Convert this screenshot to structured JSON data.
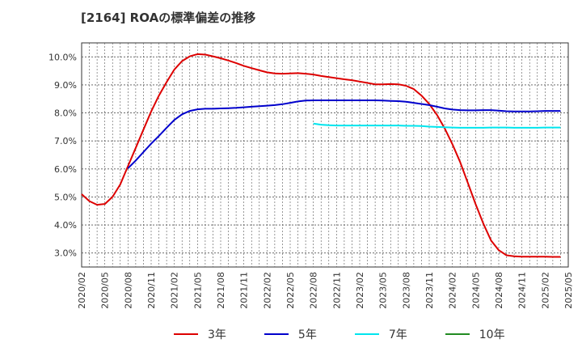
{
  "chart_data": {
    "type": "line",
    "title": "[2164]  ROAの標準偏差の推移",
    "xlabel": "",
    "ylabel": "",
    "ylim": [
      2.5,
      10.5
    ],
    "yticks": [
      3,
      4,
      5,
      6,
      7,
      8,
      9,
      10
    ],
    "ytick_labels": [
      "3.0%",
      "4.0%",
      "5.0%",
      "6.0%",
      "7.0%",
      "8.0%",
      "9.0%",
      "10.0%"
    ],
    "x_ticks": [
      "2020/02",
      "2020/05",
      "2020/08",
      "2020/11",
      "2021/02",
      "2021/05",
      "2021/08",
      "2021/11",
      "2022/02",
      "2022/05",
      "2022/08",
      "2022/11",
      "2023/02",
      "2023/05",
      "2023/08",
      "2023/11",
      "2024/02",
      "2024/05",
      "2024/08",
      "2024/11",
      "2025/02",
      "2025/05"
    ],
    "grid": true,
    "legend_position": "bottom",
    "series": [
      {
        "name": "3年",
        "color": "#dd0000",
        "values": [
          5.1,
          4.85,
          4.72,
          4.75,
          5.0,
          5.45,
          6.1,
          6.75,
          7.4,
          8.05,
          8.62,
          9.1,
          9.55,
          9.85,
          10.02,
          10.1,
          10.08,
          10.02,
          9.95,
          9.87,
          9.78,
          9.68,
          9.6,
          9.52,
          9.45,
          9.41,
          9.4,
          9.41,
          9.42,
          9.4,
          9.37,
          9.32,
          9.28,
          9.24,
          9.2,
          9.17,
          9.12,
          9.07,
          9.02,
          9.02,
          9.03,
          9.02,
          8.97,
          8.85,
          8.62,
          8.32,
          7.93,
          7.45,
          6.88,
          6.25,
          5.5,
          4.75,
          4.05,
          3.45,
          3.1,
          2.92,
          2.88,
          2.87,
          2.87,
          2.87,
          2.87,
          2.86,
          2.86
        ]
      },
      {
        "name": "5年",
        "color": "#0000cc",
        "values": [
          null,
          null,
          null,
          null,
          null,
          null,
          6.02,
          6.3,
          6.6,
          6.9,
          7.18,
          7.47,
          7.75,
          7.95,
          8.07,
          8.13,
          8.15,
          8.15,
          8.16,
          8.17,
          8.18,
          8.2,
          8.22,
          8.24,
          8.26,
          8.28,
          8.31,
          8.36,
          8.41,
          8.44,
          8.45,
          8.45,
          8.45,
          8.45,
          8.45,
          8.45,
          8.45,
          8.45,
          8.45,
          8.44,
          8.43,
          8.42,
          8.4,
          8.36,
          8.32,
          8.28,
          8.22,
          8.16,
          8.12,
          8.1,
          8.09,
          8.09,
          8.1,
          8.1,
          8.08,
          8.06,
          8.05,
          8.05,
          8.05,
          8.06,
          8.07,
          8.07,
          8.07
        ]
      },
      {
        "name": "7年",
        "color": "#00e5ee",
        "values": [
          null,
          null,
          null,
          null,
          null,
          null,
          null,
          null,
          null,
          null,
          null,
          null,
          null,
          null,
          null,
          null,
          null,
          null,
          null,
          null,
          null,
          null,
          null,
          null,
          null,
          null,
          null,
          null,
          null,
          null,
          7.62,
          7.58,
          7.56,
          7.55,
          7.55,
          7.55,
          7.55,
          7.55,
          7.55,
          7.55,
          7.55,
          7.55,
          7.54,
          7.54,
          7.53,
          7.51,
          7.5,
          7.49,
          7.48,
          7.47,
          7.47,
          7.47,
          7.47,
          7.48,
          7.48,
          7.48,
          7.47,
          7.47,
          7.47,
          7.47,
          7.48,
          7.48,
          7.48
        ]
      },
      {
        "name": "10年",
        "color": "#228b22",
        "values": []
      }
    ]
  }
}
